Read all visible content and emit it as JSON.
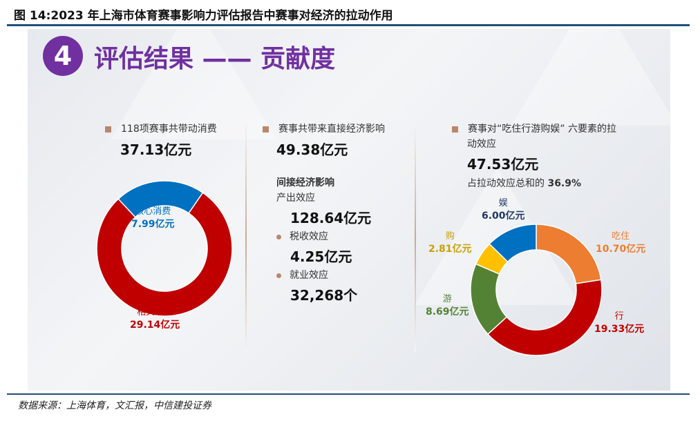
{
  "title": "图 14:2023 年上海市体育赛事影响力评估报告中赛事对经济的拉动作用",
  "badge": "4",
  "heading": "评估结果 —— 贡献度",
  "col1": {
    "label": "118项赛事共带动消费",
    "value": "37.13亿元"
  },
  "col2": {
    "label": "赛事共带来直接经济影响",
    "value": "49.38亿元",
    "indirect": "间接经济影响",
    "items": [
      {
        "label": "产出效应",
        "value": "128.64亿元"
      },
      {
        "label": "税收效应",
        "value": "4.25亿元"
      },
      {
        "label": "就业效应",
        "value": "32,268个"
      }
    ]
  },
  "col3": {
    "label1": "赛事对“吃住行游购娱” 六要素的拉",
    "label2": "动效应",
    "value": "47.53亿元",
    "share_text": "占拉动效应总和的",
    "share": "36.9%"
  },
  "chart_data": [
    {
      "type": "pie",
      "donut": true,
      "categories": [
        "核心消费",
        "相关消费"
      ],
      "values": [
        7.99,
        29.14
      ],
      "unit": "亿元",
      "labels": [
        "7.99亿元",
        "29.14亿元"
      ],
      "colors": [
        "#0070c0",
        "#c00000"
      ]
    },
    {
      "type": "pie",
      "donut": true,
      "categories": [
        "吃住",
        "行",
        "游",
        "购",
        "娱"
      ],
      "values": [
        10.7,
        19.33,
        8.69,
        2.81,
        6.0
      ],
      "unit": "亿元",
      "labels": [
        "10.70亿元",
        "19.33亿元",
        "8.69亿元",
        "2.81亿元",
        "6.00亿元"
      ],
      "colors": [
        "#ed7d31",
        "#c00000",
        "#548235",
        "#ffc000",
        "#0070c0"
      ]
    }
  ],
  "source": "数据来源：上海体育，文汇报，中信建投证券"
}
